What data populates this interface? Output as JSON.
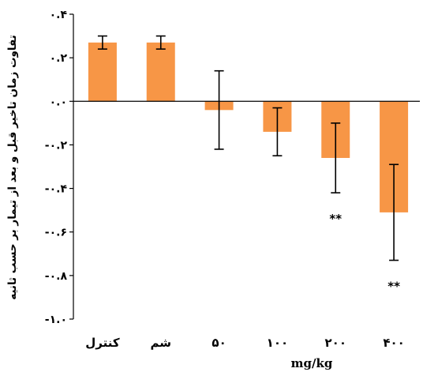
{
  "chart_data": {
    "type": "bar",
    "categories": [
      "کنترل",
      "شم",
      "۵۰",
      "۱۰۰",
      "۲۰۰",
      "۴۰۰"
    ],
    "values": [
      0.27,
      0.27,
      -0.04,
      -0.14,
      -0.26,
      -0.51
    ],
    "error": [
      0.03,
      0.03,
      0.18,
      0.11,
      0.16,
      0.22
    ],
    "significance": [
      "",
      "",
      "",
      "",
      "**",
      "**"
    ],
    "xlabel": "mg/kg",
    "ylabel": "تفاوت زمان تاخیر قبل و بعد از تیمار بر حسب ثانیه",
    "ylim": [
      -1.0,
      0.4
    ],
    "yticks": [
      0.4,
      0.2,
      0.0,
      -0.2,
      -0.4,
      -0.6,
      -0.8,
      -1.0
    ],
    "ytick_labels": [
      "۰.۴",
      "۰.۲",
      "۰.۰",
      "-۰.۲",
      "-۰.۴",
      "-۰.۶",
      "-۰.۸",
      "-۱.۰"
    ],
    "bar_color": "#F79646",
    "grid": false,
    "legend": "none"
  }
}
